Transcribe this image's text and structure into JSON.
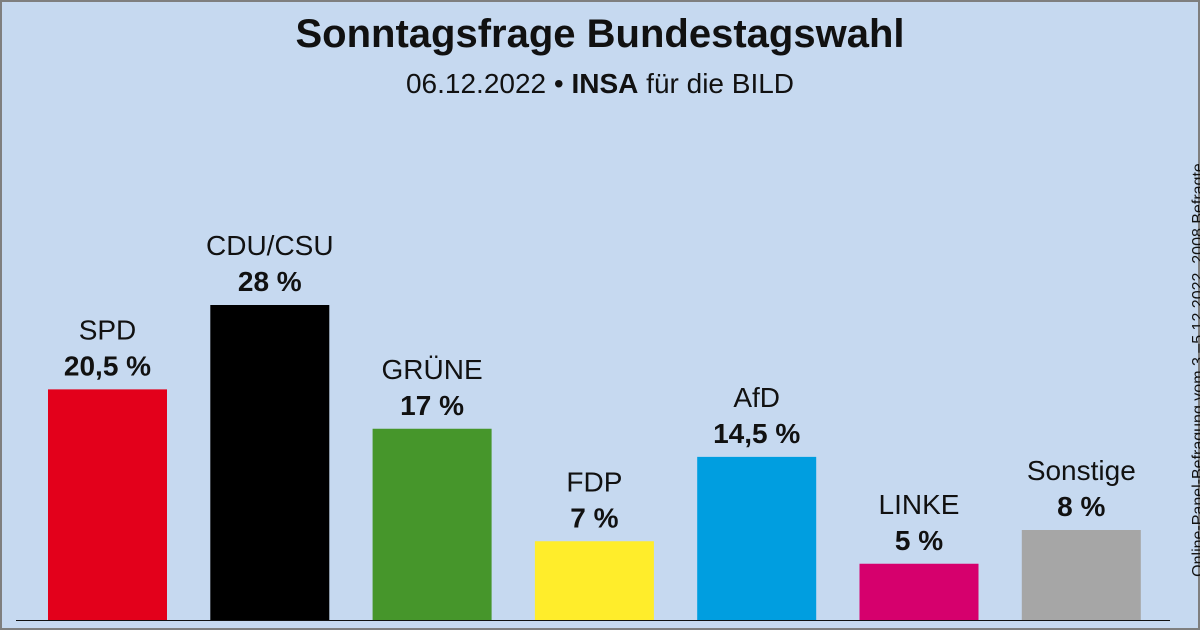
{
  "chart_data": {
    "type": "bar",
    "title": "Sonntagsfrage Bundestagswahl",
    "subtitle": {
      "date": "06.12.2022",
      "separator": "•",
      "pollster": "INSA",
      "client": "für die BILD"
    },
    "side_note": "Online-Panel-Befragung vom 3.–5.12.2022, 2008 Befragte",
    "categories": [
      "SPD",
      "CDU/CSU",
      "GRÜNE",
      "FDP",
      "AfD",
      "LINKE",
      "Sonstige"
    ],
    "values": [
      20.5,
      28,
      17,
      7,
      14.5,
      5,
      8
    ],
    "value_labels": [
      "20,5 %",
      "28 %",
      "17 %",
      "7 %",
      "14,5 %",
      "5 %",
      "8 %"
    ],
    "colors": [
      "#e3001b",
      "#000000",
      "#46962b",
      "#ffed2b",
      "#009ee0",
      "#d6006d",
      "#a6a6a6"
    ],
    "ylim": [
      0,
      28
    ],
    "legend": "none",
    "grid": false
  }
}
